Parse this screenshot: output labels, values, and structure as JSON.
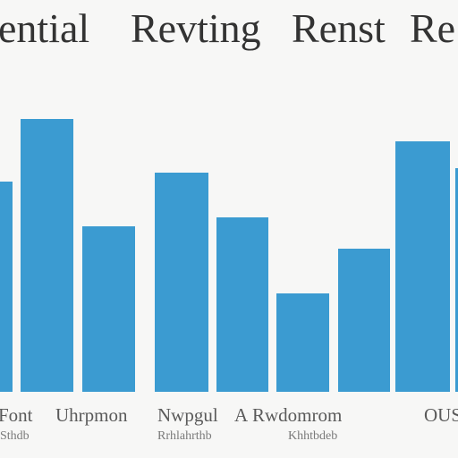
{
  "chart_data": {
    "type": "bar",
    "title_segments": [
      "ential",
      "Revting",
      "Renst",
      "Re"
    ],
    "values": [
      47,
      61,
      37,
      49,
      39,
      22,
      32,
      56,
      50
    ],
    "ylim": [
      0,
      70
    ],
    "grid": false,
    "bar_color": "#3b9bd1",
    "category_labels_line1": [
      "Font",
      "Uhrpmon",
      "Nwpgul",
      "A",
      "Rwdomrom",
      "OUS"
    ],
    "category_labels_line2": [
      "Sthdb",
      "Rrhlahrthb",
      "Khhtbdeb"
    ]
  }
}
